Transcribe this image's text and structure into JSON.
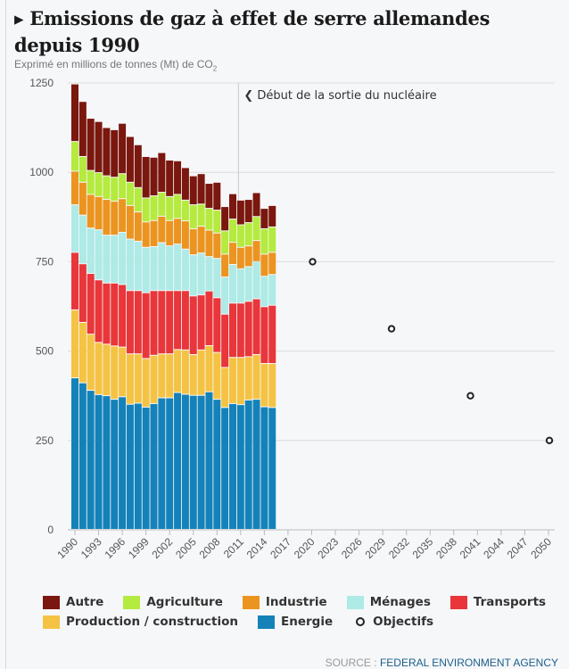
{
  "title": "▸ Emissions de gaz à effet de serre allemandes depuis 1990",
  "subtitle": "Exprimé en millions de tonnes (Mt) de CO",
  "subtitle_sub": "2",
  "source_label": "SOURCE :",
  "source_value": "FEDERAL ENVIRONMENT AGENCY",
  "chart_data": {
    "type": "bar",
    "stacked": true,
    "title": "Emissions de gaz à effet de serre allemandes depuis 1990",
    "ylabel": "Exprimé en millions de tonnes (Mt) de CO2",
    "ylim": [
      0,
      1250
    ],
    "yticks": [
      "0",
      "250",
      "500",
      "750",
      "1000",
      "1250"
    ],
    "xlim": [
      1990,
      2050
    ],
    "xticks": [
      "1990",
      "1993",
      "1996",
      "1999",
      "2002",
      "2005",
      "2008",
      "2011",
      "2014",
      "2017",
      "2020",
      "2023",
      "2026",
      "2029",
      "2032",
      "2035",
      "2038",
      "2041",
      "2044",
      "2047",
      "2050"
    ],
    "grid": "horizontal",
    "legend_position": "bottom",
    "categories": [
      1990,
      1991,
      1992,
      1993,
      1994,
      1995,
      1996,
      1997,
      1998,
      1999,
      2000,
      2001,
      2002,
      2003,
      2004,
      2005,
      2006,
      2007,
      2008,
      2009,
      2010,
      2011,
      2012,
      2013,
      2014,
      2015
    ],
    "series": [
      {
        "name": "Energie",
        "color": "#1482b8",
        "values": [
          424,
          410,
          389,
          377,
          374,
          364,
          371,
          350,
          353,
          342,
          352,
          368,
          368,
          383,
          378,
          375,
          375,
          385,
          364,
          341,
          352,
          349,
          362,
          364,
          343,
          341
        ]
      },
      {
        "name": "Production / construction",
        "color": "#f5c343",
        "values": [
          190,
          169,
          157,
          146,
          144,
          149,
          139,
          141,
          138,
          136,
          135,
          123,
          123,
          120,
          124,
          114,
          127,
          129,
          131,
          112,
          129,
          132,
          121,
          125,
          121,
          123
        ]
      },
      {
        "name": "Transports",
        "color": "#e8363a",
        "values": [
          161,
          164,
          170,
          175,
          171,
          176,
          175,
          177,
          177,
          184,
          181,
          177,
          177,
          165,
          166,
          164,
          154,
          153,
          153,
          149,
          152,
          152,
          155,
          156,
          159,
          163
        ]
      },
      {
        "name": "Ménages",
        "color": "#aeeae6",
        "values": [
          133,
          136,
          127,
          140,
          134,
          134,
          146,
          144,
          138,
          127,
          123,
          134,
          125,
          130,
          116,
          115,
          117,
          96,
          110,
          104,
          108,
          96,
          97,
          104,
          85,
          86
        ]
      },
      {
        "name": "Industrie",
        "color": "#ec9420",
        "values": [
          94,
          92,
          94,
          93,
          100,
          95,
          94,
          94,
          82,
          71,
          73,
          74,
          71,
          72,
          79,
          73,
          75,
          74,
          71,
          64,
          62,
          60,
          58,
          59,
          62,
          62
        ]
      },
      {
        "name": "Agriculture",
        "color": "#b5ea3e",
        "values": [
          83,
          72,
          67,
          67,
          66,
          67,
          70,
          65,
          68,
          67,
          69,
          67,
          67,
          67,
          58,
          67,
          62,
          61,
          64,
          65,
          65,
          63,
          65,
          67,
          71,
          71
        ]
      },
      {
        "name": "Autre",
        "color": "#7a170e",
        "values": [
          161,
          154,
          146,
          143,
          135,
          133,
          141,
          128,
          120,
          116,
          108,
          111,
          102,
          94,
          91,
          81,
          85,
          70,
          78,
          68,
          71,
          69,
          65,
          67,
          57,
          60
        ]
      }
    ],
    "targets": {
      "name": "Objectifs",
      "x": [
        2020,
        2030,
        2040,
        2050
      ],
      "y": [
        750,
        562.5,
        375,
        250
      ]
    },
    "annotation": {
      "text": "❮ Début de la sortie du nucléaire",
      "x": 2011
    }
  },
  "legend": {
    "row1": [
      {
        "label": "Autre",
        "color": "#7a170e"
      },
      {
        "label": "Agriculture",
        "color": "#b5ea3e"
      },
      {
        "label": "Industrie",
        "color": "#ec9420"
      },
      {
        "label": "Ménages",
        "color": "#aeeae6"
      },
      {
        "label": "Transports",
        "color": "#e8363a"
      }
    ],
    "row2": [
      {
        "label": "Production / construction",
        "color": "#f5c343"
      },
      {
        "label": "Energie",
        "color": "#1482b8"
      },
      {
        "label": "Objectifs",
        "marker": "circle-outline"
      }
    ]
  }
}
